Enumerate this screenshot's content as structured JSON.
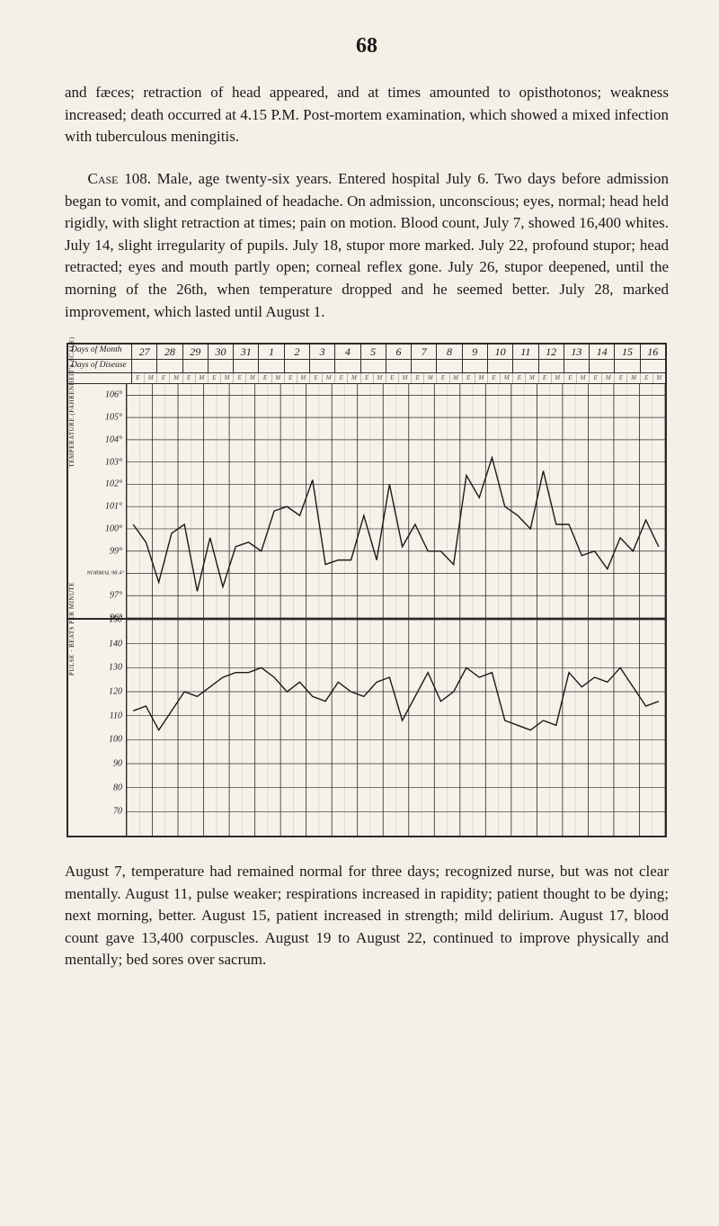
{
  "page_number": "68",
  "para1": "and fæces; retraction of head appeared, and at times amounted to opisthotonos; weakness increased; death occurred at 4.15 P.M. Post-mortem examination, which showed a mixed infection with tuberculous meningitis.",
  "para2_lead": "Case 108.",
  "para2": "  Male, age twenty-six years. Entered hospital July 6. Two days before admission began to vomit, and complained of headache. On admission, unconscious; eyes, normal; head held rigidly, with slight retraction at times; pain on motion. Blood count, July 7, showed 16,400 whites. July 14, slight irregularity of pupils. July 18, stupor more marked. July 22, profound stupor; head retracted; eyes and mouth partly open; corneal reflex gone. July 26, stupor deepened, until the morning of the 26th, when temperature dropped and he seemed better. July 28, marked improvement, which lasted until August 1.",
  "para3": "August 7, temperature had remained normal for three days; recognized nurse, but was not clear mentally. August 11, pulse weaker; respirations increased in rapidity; patient thought to be dying; next morning, better. August 15, patient increased in strength; mild delirium. August 17, blood count gave 13,400 corpuscles. August 19 to August 22, continued to improve physically and mentally; bed sores over sacrum.",
  "chart": {
    "header": {
      "days_of_month_label": "Days of Month",
      "days_of_disease_label": "Days of Disease",
      "days": [
        "27",
        "28",
        "29",
        "30",
        "31",
        "1",
        "2",
        "3",
        "4",
        "5",
        "6",
        "7",
        "8",
        "9",
        "10",
        "11",
        "12",
        "13",
        "14",
        "15",
        "16"
      ],
      "subticks": [
        "E",
        "M"
      ]
    },
    "grid": {
      "color_major": "#2a2a2a",
      "color_minor": "#cfcabd",
      "background": "#f6f2ea"
    },
    "temp": {
      "axis_label": "TEMPERATURE.(FAHRENHEIT'S SCALE)",
      "ymin": 96,
      "ymax": 106.5,
      "ticks": [
        106,
        105,
        104,
        103,
        102,
        101,
        100,
        99,
        98,
        97,
        96
      ],
      "tick_labels": [
        "106°",
        "105°",
        "104°",
        "103°",
        "102°",
        "101°",
        "100°",
        "99°",
        "NORMAL 98.4°",
        "97°",
        "96°"
      ],
      "line_color": "#1a1a1a",
      "line_width": 1.4,
      "values_half_day": [
        100.2,
        99.4,
        97.6,
        99.8,
        100.2,
        97.2,
        99.6,
        97.4,
        99.2,
        99.4,
        99.0,
        100.8,
        101.0,
        100.6,
        102.2,
        98.4,
        98.6,
        98.6,
        100.6,
        98.6,
        102.0,
        99.2,
        100.2,
        99.0,
        99.0,
        98.4,
        102.4,
        101.4,
        103.2,
        101.0,
        100.6,
        100.0,
        102.6,
        100.2,
        100.2,
        98.8,
        99.0,
        98.2,
        99.6,
        99.0,
        100.4,
        99.2
      ]
    },
    "pulse": {
      "axis_label": "PULSE · BEATS PER MINUTE",
      "ymin": 60,
      "ymax": 150,
      "ticks": [
        150,
        140,
        130,
        120,
        110,
        100,
        90,
        80,
        70
      ],
      "tick_labels": [
        "150",
        "140",
        "130",
        "120",
        "110",
        "100",
        "90",
        "80",
        "70"
      ],
      "line_color": "#1a1a1a",
      "line_width": 1.4,
      "values_half_day": [
        112,
        114,
        104,
        112,
        120,
        118,
        122,
        126,
        128,
        128,
        130,
        126,
        120,
        124,
        118,
        116,
        124,
        120,
        118,
        124,
        126,
        108,
        118,
        128,
        116,
        120,
        130,
        126,
        128,
        108,
        106,
        104,
        108,
        106,
        128,
        122,
        126,
        124,
        130,
        122,
        114,
        116
      ]
    }
  }
}
